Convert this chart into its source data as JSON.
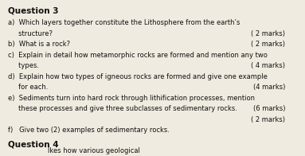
{
  "bg_color": "#f0ebe0",
  "text_color": "#111111",
  "title_fontsize": 7.5,
  "body_fontsize": 6.0,
  "marks_fontsize": 6.0,
  "title": "Question 3",
  "footer_title": "Question 4",
  "footer_line": "lkes how various geological",
  "items": [
    {
      "lines": [
        "a)  Which layers together constitute the Lithosphere from the earth’s",
        "     structure?"
      ],
      "mark": "( 2 marks)",
      "mark_line": 1
    },
    {
      "lines": [
        "b)  What is a rock?"
      ],
      "mark": "( 2 marks)",
      "mark_line": 0
    },
    {
      "lines": [
        "c)  Explain in detail how metamorphic rocks are formed and mention any two",
        "     types."
      ],
      "mark": "( 4 marks)",
      "mark_line": 1
    },
    {
      "lines": [
        "d)  Explain how two types of igneous rocks are formed and give one example",
        "     for each."
      ],
      "mark": "(4 marks)",
      "mark_line": 1
    },
    {
      "lines": [
        "e)  Sediments turn into hard rock through lithification processes, mention",
        "     these processes and give three subclasses of sedimentary rocks."
      ],
      "mark": "(6 marks)",
      "mark_line": 1
    },
    {
      "lines": [],
      "mark": "( 2 marks)",
      "mark_line": 0,
      "extra_mark_only": true
    },
    {
      "lines": [
        "f)   Give two (2) examples of sedimentary rocks."
      ],
      "mark": null,
      "mark_line": 0
    }
  ]
}
